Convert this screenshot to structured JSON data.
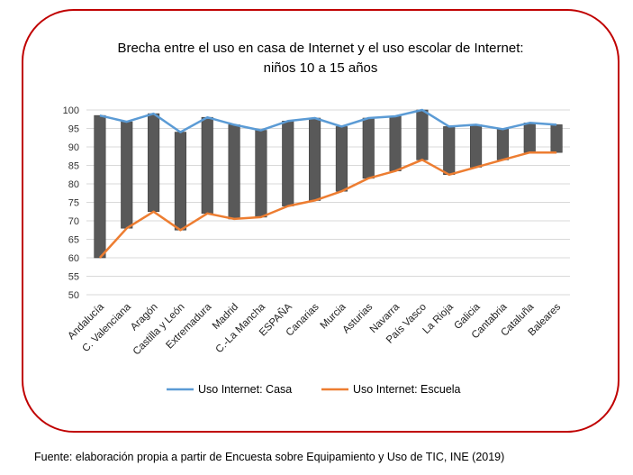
{
  "chart_data": {
    "type": "line",
    "title_lines": [
      "Brecha entre el uso en casa de Internet y el uso escolar de Internet:",
      "niños 10 a 15 años"
    ],
    "categories": [
      "Andalucía",
      "C. Valenciana",
      "Aragón",
      "Castilla y León",
      "Extremadura",
      "Madrid",
      "C.-La Mancha",
      "ESPAÑA",
      "Canarias",
      "Murcia",
      "Asturias",
      "Navarra",
      "País Vasco",
      "La Rioja",
      "Galicia",
      "Cantabria",
      "Cataluña",
      "Baleares"
    ],
    "series": [
      {
        "name": "Uso Internet: Casa",
        "color": "#5b9bd5",
        "values": [
          98.5,
          96.8,
          99.0,
          94.0,
          98.0,
          96.0,
          94.5,
          97.0,
          97.8,
          95.5,
          97.8,
          98.3,
          100.0,
          95.5,
          96.0,
          94.8,
          96.5,
          96.0
        ]
      },
      {
        "name": "Uso Internet: Escuela",
        "color": "#ed7d31",
        "values": [
          60.0,
          68.0,
          72.5,
          67.5,
          72.0,
          70.5,
          71.0,
          74.0,
          75.5,
          78.0,
          81.5,
          83.5,
          86.5,
          82.5,
          84.5,
          86.5,
          88.5,
          88.5
        ]
      }
    ],
    "gap_bar_color": "#595959",
    "y_ticks": [
      "50",
      "55",
      "60",
      "65",
      "70",
      "75",
      "80",
      "85",
      "90",
      "95",
      "100"
    ],
    "ylim": [
      50,
      100
    ],
    "grid": true,
    "legend_position": "bottom"
  },
  "footer": {
    "source": "Fuente: elaboración propia a partir de Encuesta sobre Equipamiento y Uso de TIC, INE (2019)"
  }
}
